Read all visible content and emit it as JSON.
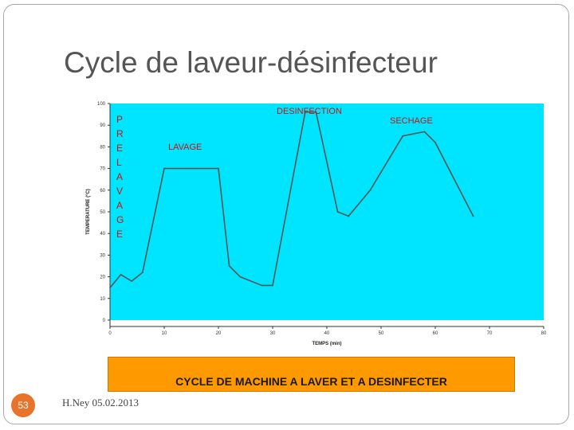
{
  "slide": {
    "title": "Cycle de laveur-désinfecteur",
    "banner_text": "CYCLE DE MACHINE A LAVER ET A DESINFECTER",
    "slide_number": "53",
    "footer": "H.Ney 05.02.2013"
  },
  "colors": {
    "plot_background": "#00e5ff",
    "line": "#555555",
    "annotation": "#cc1111",
    "banner": "#ff9900",
    "badge": "#e8742b"
  },
  "chart_data": {
    "type": "line",
    "xlabel": "TEMPS (min)",
    "ylabel": "TEMPERATURE (°C)",
    "xlim": [
      0,
      80
    ],
    "ylim": [
      0,
      100
    ],
    "x_ticks": [
      0,
      10,
      20,
      30,
      40,
      50,
      60,
      70,
      80
    ],
    "y_ticks": [
      0,
      10,
      20,
      30,
      40,
      50,
      60,
      70,
      80,
      90,
      100
    ],
    "grid": false,
    "series": [
      {
        "x": [
          0,
          2,
          4,
          6,
          10,
          15,
          20,
          22,
          24,
          28,
          30,
          36,
          38,
          42,
          44,
          48,
          54,
          58,
          60,
          67
        ],
        "y": [
          15,
          21,
          18,
          22,
          70,
          70,
          70,
          25,
          20,
          16,
          16,
          96,
          96,
          50,
          48,
          60,
          85,
          87,
          82,
          48
        ]
      }
    ],
    "annotations": [
      {
        "text": "P R E L A V A G E",
        "position": "left-vertical"
      },
      {
        "text": "LAVAGE",
        "position": "upper-left"
      },
      {
        "text": "DESINFECTION",
        "position": "top-center"
      },
      {
        "text": "SECHAGE",
        "position": "top-right"
      }
    ]
  }
}
